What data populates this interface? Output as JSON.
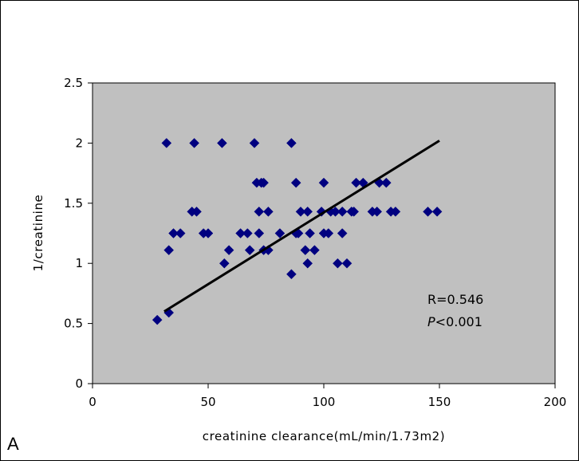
{
  "chart_data": {
    "type": "scatter",
    "xlabel": "creatinine clearance(mL/min/1.73m2)",
    "ylabel": "1/creatinine",
    "xlim": [
      0,
      200
    ],
    "ylim": [
      0,
      2.5
    ],
    "x_ticks": [
      0,
      50,
      100,
      150,
      200
    ],
    "y_ticks": [
      0,
      0.5,
      1,
      1.5,
      2,
      2.5
    ],
    "grid": false,
    "legend": "none",
    "background_color": "#c0c0c0",
    "marker_color": "#000080",
    "fit_line_color": "#000000",
    "series": [
      {
        "points": [
          [
            28,
            0.53
          ],
          [
            33,
            0.59
          ],
          [
            32,
            2.0
          ],
          [
            44,
            2.0
          ],
          [
            56,
            2.0
          ],
          [
            70,
            2.0
          ],
          [
            86,
            2.0
          ],
          [
            33,
            1.11
          ],
          [
            35,
            1.25
          ],
          [
            38,
            1.25
          ],
          [
            43,
            1.43
          ],
          [
            45,
            1.43
          ],
          [
            48,
            1.25
          ],
          [
            50,
            1.25
          ],
          [
            57,
            1.0
          ],
          [
            59,
            1.11
          ],
          [
            64,
            1.25
          ],
          [
            67,
            1.25
          ],
          [
            68,
            1.11
          ],
          [
            71,
            1.67
          ],
          [
            73,
            1.67
          ],
          [
            72,
            1.43
          ],
          [
            72,
            1.25
          ],
          [
            74,
            1.11
          ],
          [
            76,
            1.43
          ],
          [
            76,
            1.11
          ],
          [
            74,
            1.67
          ],
          [
            81,
            1.25
          ],
          [
            86,
            0.91
          ],
          [
            88,
            1.25
          ],
          [
            89,
            1.25
          ],
          [
            88,
            1.67
          ],
          [
            90,
            1.43
          ],
          [
            92,
            1.11
          ],
          [
            93,
            1.43
          ],
          [
            94,
            1.25
          ],
          [
            93,
            1.0
          ],
          [
            96,
            1.11
          ],
          [
            99,
            1.43
          ],
          [
            100,
            1.67
          ],
          [
            100,
            1.25
          ],
          [
            102,
            1.25
          ],
          [
            103,
            1.43
          ],
          [
            105,
            1.43
          ],
          [
            106,
            1.0
          ],
          [
            108,
            1.43
          ],
          [
            108,
            1.25
          ],
          [
            110,
            1.0
          ],
          [
            112,
            1.43
          ],
          [
            113,
            1.43
          ],
          [
            114,
            1.67
          ],
          [
            117,
            1.67
          ],
          [
            121,
            1.43
          ],
          [
            123,
            1.43
          ],
          [
            124,
            1.67
          ],
          [
            127,
            1.67
          ],
          [
            129,
            1.43
          ],
          [
            131,
            1.43
          ],
          [
            145,
            1.43
          ],
          [
            149,
            1.43
          ]
        ]
      }
    ],
    "fit_line": {
      "x": [
        31,
        150
      ],
      "y": [
        0.6,
        2.02
      ]
    },
    "annotations": [
      "R=0.546",
      "P<0.001"
    ]
  },
  "panel_label": "A"
}
